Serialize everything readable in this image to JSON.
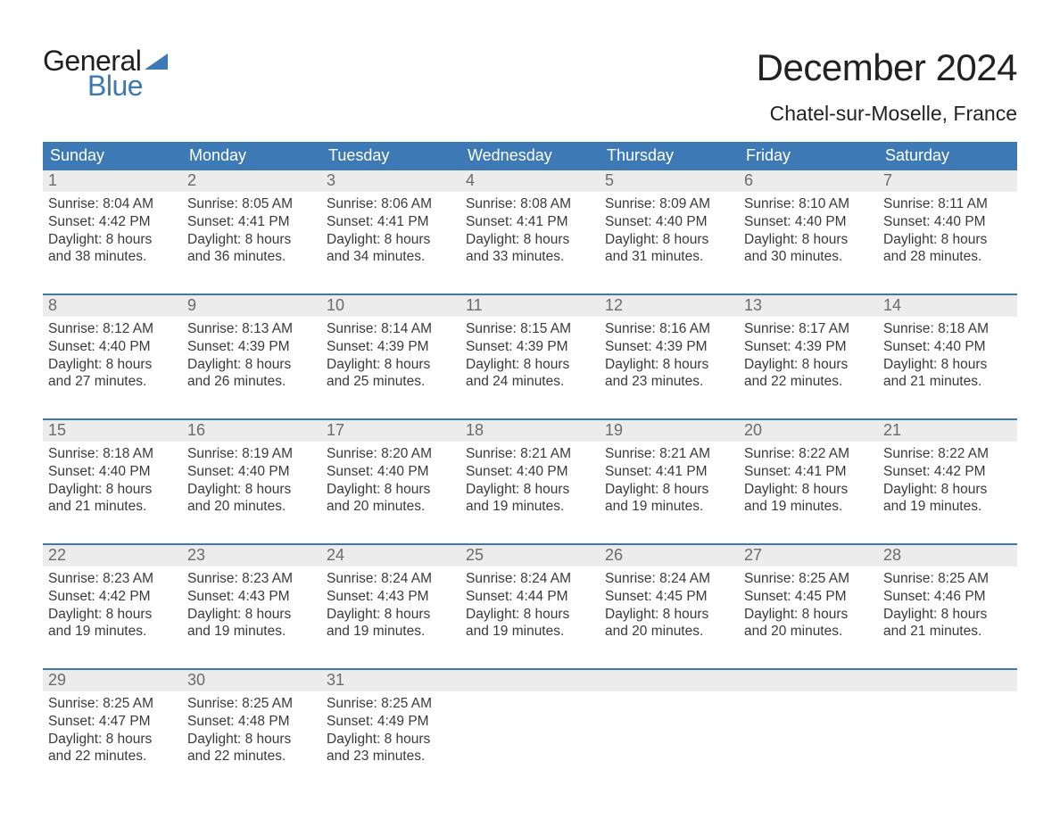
{
  "brand": {
    "top_word": "General",
    "bottom_word": "Blue",
    "wedge_color": "#3d79b4"
  },
  "title": "December 2024",
  "location": "Chatel-sur-Moselle, France",
  "colors": {
    "header_bg": "#3d79b4",
    "row_separator": "#3d79b4",
    "daynum_bg": "#ececec",
    "text": "#3a3a3a",
    "daynum_text": "#6b6b6b",
    "background": "#ffffff"
  },
  "typography": {
    "title_fontsize": 42,
    "location_fontsize": 23,
    "dow_fontsize": 18,
    "body_fontsize": 15.5
  },
  "days_of_week": [
    "Sunday",
    "Monday",
    "Tuesday",
    "Wednesday",
    "Thursday",
    "Friday",
    "Saturday"
  ],
  "weeks": [
    [
      {
        "n": "1",
        "sunrise": "Sunrise: 8:04 AM",
        "sunset": "Sunset: 4:42 PM",
        "dl1": "Daylight: 8 hours",
        "dl2": "and 38 minutes."
      },
      {
        "n": "2",
        "sunrise": "Sunrise: 8:05 AM",
        "sunset": "Sunset: 4:41 PM",
        "dl1": "Daylight: 8 hours",
        "dl2": "and 36 minutes."
      },
      {
        "n": "3",
        "sunrise": "Sunrise: 8:06 AM",
        "sunset": "Sunset: 4:41 PM",
        "dl1": "Daylight: 8 hours",
        "dl2": "and 34 minutes."
      },
      {
        "n": "4",
        "sunrise": "Sunrise: 8:08 AM",
        "sunset": "Sunset: 4:41 PM",
        "dl1": "Daylight: 8 hours",
        "dl2": "and 33 minutes."
      },
      {
        "n": "5",
        "sunrise": "Sunrise: 8:09 AM",
        "sunset": "Sunset: 4:40 PM",
        "dl1": "Daylight: 8 hours",
        "dl2": "and 31 minutes."
      },
      {
        "n": "6",
        "sunrise": "Sunrise: 8:10 AM",
        "sunset": "Sunset: 4:40 PM",
        "dl1": "Daylight: 8 hours",
        "dl2": "and 30 minutes."
      },
      {
        "n": "7",
        "sunrise": "Sunrise: 8:11 AM",
        "sunset": "Sunset: 4:40 PM",
        "dl1": "Daylight: 8 hours",
        "dl2": "and 28 minutes."
      }
    ],
    [
      {
        "n": "8",
        "sunrise": "Sunrise: 8:12 AM",
        "sunset": "Sunset: 4:40 PM",
        "dl1": "Daylight: 8 hours",
        "dl2": "and 27 minutes."
      },
      {
        "n": "9",
        "sunrise": "Sunrise: 8:13 AM",
        "sunset": "Sunset: 4:39 PM",
        "dl1": "Daylight: 8 hours",
        "dl2": "and 26 minutes."
      },
      {
        "n": "10",
        "sunrise": "Sunrise: 8:14 AM",
        "sunset": "Sunset: 4:39 PM",
        "dl1": "Daylight: 8 hours",
        "dl2": "and 25 minutes."
      },
      {
        "n": "11",
        "sunrise": "Sunrise: 8:15 AM",
        "sunset": "Sunset: 4:39 PM",
        "dl1": "Daylight: 8 hours",
        "dl2": "and 24 minutes."
      },
      {
        "n": "12",
        "sunrise": "Sunrise: 8:16 AM",
        "sunset": "Sunset: 4:39 PM",
        "dl1": "Daylight: 8 hours",
        "dl2": "and 23 minutes."
      },
      {
        "n": "13",
        "sunrise": "Sunrise: 8:17 AM",
        "sunset": "Sunset: 4:39 PM",
        "dl1": "Daylight: 8 hours",
        "dl2": "and 22 minutes."
      },
      {
        "n": "14",
        "sunrise": "Sunrise: 8:18 AM",
        "sunset": "Sunset: 4:40 PM",
        "dl1": "Daylight: 8 hours",
        "dl2": "and 21 minutes."
      }
    ],
    [
      {
        "n": "15",
        "sunrise": "Sunrise: 8:18 AM",
        "sunset": "Sunset: 4:40 PM",
        "dl1": "Daylight: 8 hours",
        "dl2": "and 21 minutes."
      },
      {
        "n": "16",
        "sunrise": "Sunrise: 8:19 AM",
        "sunset": "Sunset: 4:40 PM",
        "dl1": "Daylight: 8 hours",
        "dl2": "and 20 minutes."
      },
      {
        "n": "17",
        "sunrise": "Sunrise: 8:20 AM",
        "sunset": "Sunset: 4:40 PM",
        "dl1": "Daylight: 8 hours",
        "dl2": "and 20 minutes."
      },
      {
        "n": "18",
        "sunrise": "Sunrise: 8:21 AM",
        "sunset": "Sunset: 4:40 PM",
        "dl1": "Daylight: 8 hours",
        "dl2": "and 19 minutes."
      },
      {
        "n": "19",
        "sunrise": "Sunrise: 8:21 AM",
        "sunset": "Sunset: 4:41 PM",
        "dl1": "Daylight: 8 hours",
        "dl2": "and 19 minutes."
      },
      {
        "n": "20",
        "sunrise": "Sunrise: 8:22 AM",
        "sunset": "Sunset: 4:41 PM",
        "dl1": "Daylight: 8 hours",
        "dl2": "and 19 minutes."
      },
      {
        "n": "21",
        "sunrise": "Sunrise: 8:22 AM",
        "sunset": "Sunset: 4:42 PM",
        "dl1": "Daylight: 8 hours",
        "dl2": "and 19 minutes."
      }
    ],
    [
      {
        "n": "22",
        "sunrise": "Sunrise: 8:23 AM",
        "sunset": "Sunset: 4:42 PM",
        "dl1": "Daylight: 8 hours",
        "dl2": "and 19 minutes."
      },
      {
        "n": "23",
        "sunrise": "Sunrise: 8:23 AM",
        "sunset": "Sunset: 4:43 PM",
        "dl1": "Daylight: 8 hours",
        "dl2": "and 19 minutes."
      },
      {
        "n": "24",
        "sunrise": "Sunrise: 8:24 AM",
        "sunset": "Sunset: 4:43 PM",
        "dl1": "Daylight: 8 hours",
        "dl2": "and 19 minutes."
      },
      {
        "n": "25",
        "sunrise": "Sunrise: 8:24 AM",
        "sunset": "Sunset: 4:44 PM",
        "dl1": "Daylight: 8 hours",
        "dl2": "and 19 minutes."
      },
      {
        "n": "26",
        "sunrise": "Sunrise: 8:24 AM",
        "sunset": "Sunset: 4:45 PM",
        "dl1": "Daylight: 8 hours",
        "dl2": "and 20 minutes."
      },
      {
        "n": "27",
        "sunrise": "Sunrise: 8:25 AM",
        "sunset": "Sunset: 4:45 PM",
        "dl1": "Daylight: 8 hours",
        "dl2": "and 20 minutes."
      },
      {
        "n": "28",
        "sunrise": "Sunrise: 8:25 AM",
        "sunset": "Sunset: 4:46 PM",
        "dl1": "Daylight: 8 hours",
        "dl2": "and 21 minutes."
      }
    ],
    [
      {
        "n": "29",
        "sunrise": "Sunrise: 8:25 AM",
        "sunset": "Sunset: 4:47 PM",
        "dl1": "Daylight: 8 hours",
        "dl2": "and 22 minutes."
      },
      {
        "n": "30",
        "sunrise": "Sunrise: 8:25 AM",
        "sunset": "Sunset: 4:48 PM",
        "dl1": "Daylight: 8 hours",
        "dl2": "and 22 minutes."
      },
      {
        "n": "31",
        "sunrise": "Sunrise: 8:25 AM",
        "sunset": "Sunset: 4:49 PM",
        "dl1": "Daylight: 8 hours",
        "dl2": "and 23 minutes."
      },
      {
        "n": "",
        "sunrise": "",
        "sunset": "",
        "dl1": "",
        "dl2": ""
      },
      {
        "n": "",
        "sunrise": "",
        "sunset": "",
        "dl1": "",
        "dl2": ""
      },
      {
        "n": "",
        "sunrise": "",
        "sunset": "",
        "dl1": "",
        "dl2": ""
      },
      {
        "n": "",
        "sunrise": "",
        "sunset": "",
        "dl1": "",
        "dl2": ""
      }
    ]
  ]
}
